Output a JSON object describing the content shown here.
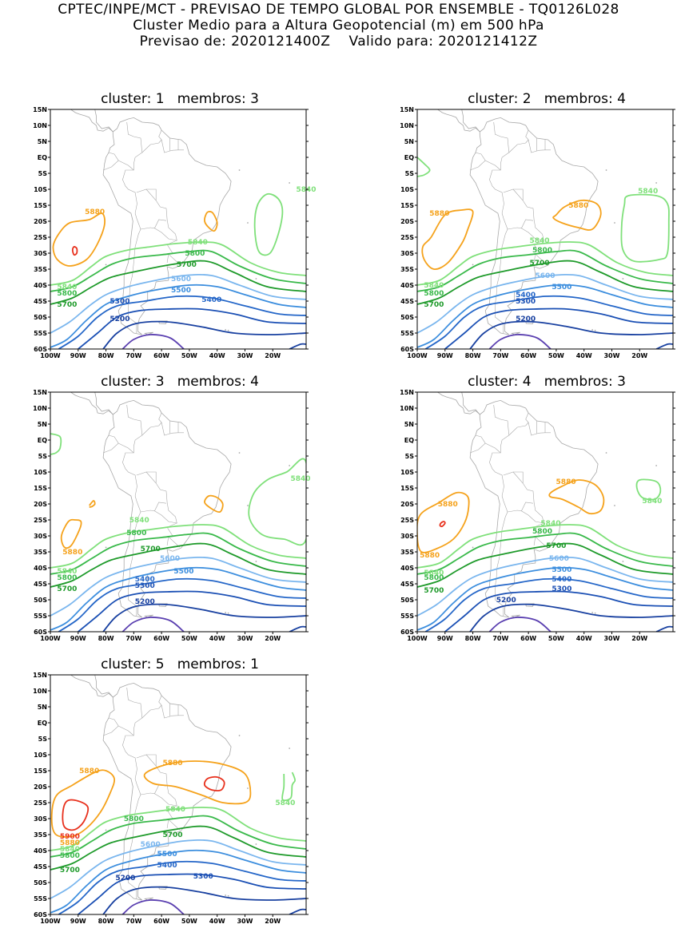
{
  "header": {
    "line1": "CPTEC/INPE/MCT - PREVISAO DE TEMPO GLOBAL POR ENSEMBLE - TQ0126L028",
    "line2": "Cluster Medio para a Altura Geopotencial (m) em 500 hPa",
    "line3": "Previsao de: 2020121400Z    Valido para: 2020121412Z"
  },
  "lat_labels": [
    "15N",
    "10N",
    "5N",
    "EQ",
    "5S",
    "10S",
    "15S",
    "20S",
    "25S",
    "30S",
    "35S",
    "40S",
    "45S",
    "50S",
    "55S",
    "60S"
  ],
  "lon_labels": [
    "100W",
    "90W",
    "80W",
    "70W",
    "60W",
    "50W",
    "40W",
    "30W",
    "20W"
  ],
  "colors": {
    "c5900": "#e8301c",
    "c5880": "#f5a21b",
    "c5840": "#7fe07a",
    "c5800": "#39b94a",
    "c5700": "#1e9a2a",
    "c5600": "#7ab6ee",
    "c5500": "#3c8ede",
    "c5400": "#2466c8",
    "c5300": "#1a4fb4",
    "c5200": "#1840a0",
    "c5100": "#5a3fb0",
    "coast": "#a8a8a8"
  },
  "panels": [
    {
      "title": "cluster: 1   membros: 3",
      "labels": [
        "5880",
        "5840",
        "5840",
        "5800",
        "5700",
        "5600",
        "5500",
        "5400",
        "5300",
        "5200",
        "5840",
        "5800",
        "5700"
      ]
    },
    {
      "title": "cluster: 2   membros: 4",
      "labels": [
        "5880",
        "5880",
        "5840",
        "5840",
        "5800",
        "5700",
        "5600",
        "5500",
        "5400",
        "5300",
        "5200",
        "5840",
        "5800",
        "5700"
      ]
    },
    {
      "title": "cluster: 3   membros: 4",
      "labels": [
        "5880",
        "5840",
        "5840",
        "5800",
        "5700",
        "5600",
        "5500",
        "5400",
        "5300",
        "5200",
        "5840",
        "5800",
        "5700"
      ]
    },
    {
      "title": "cluster: 4   membros: 3",
      "labels": [
        "5880",
        "5880",
        "5840",
        "5840",
        "5800",
        "5700",
        "5600",
        "5500",
        "5400",
        "5300",
        "5200",
        "5840",
        "5800",
        "5700",
        "5880"
      ]
    },
    {
      "title": "cluster: 5   membros: 1",
      "labels": [
        "5880",
        "5880",
        "5840",
        "5840",
        "5800",
        "5700",
        "5600",
        "5500",
        "5400",
        "5300",
        "5200",
        "5900",
        "5880",
        "5840",
        "5800",
        "5700"
      ]
    }
  ]
}
